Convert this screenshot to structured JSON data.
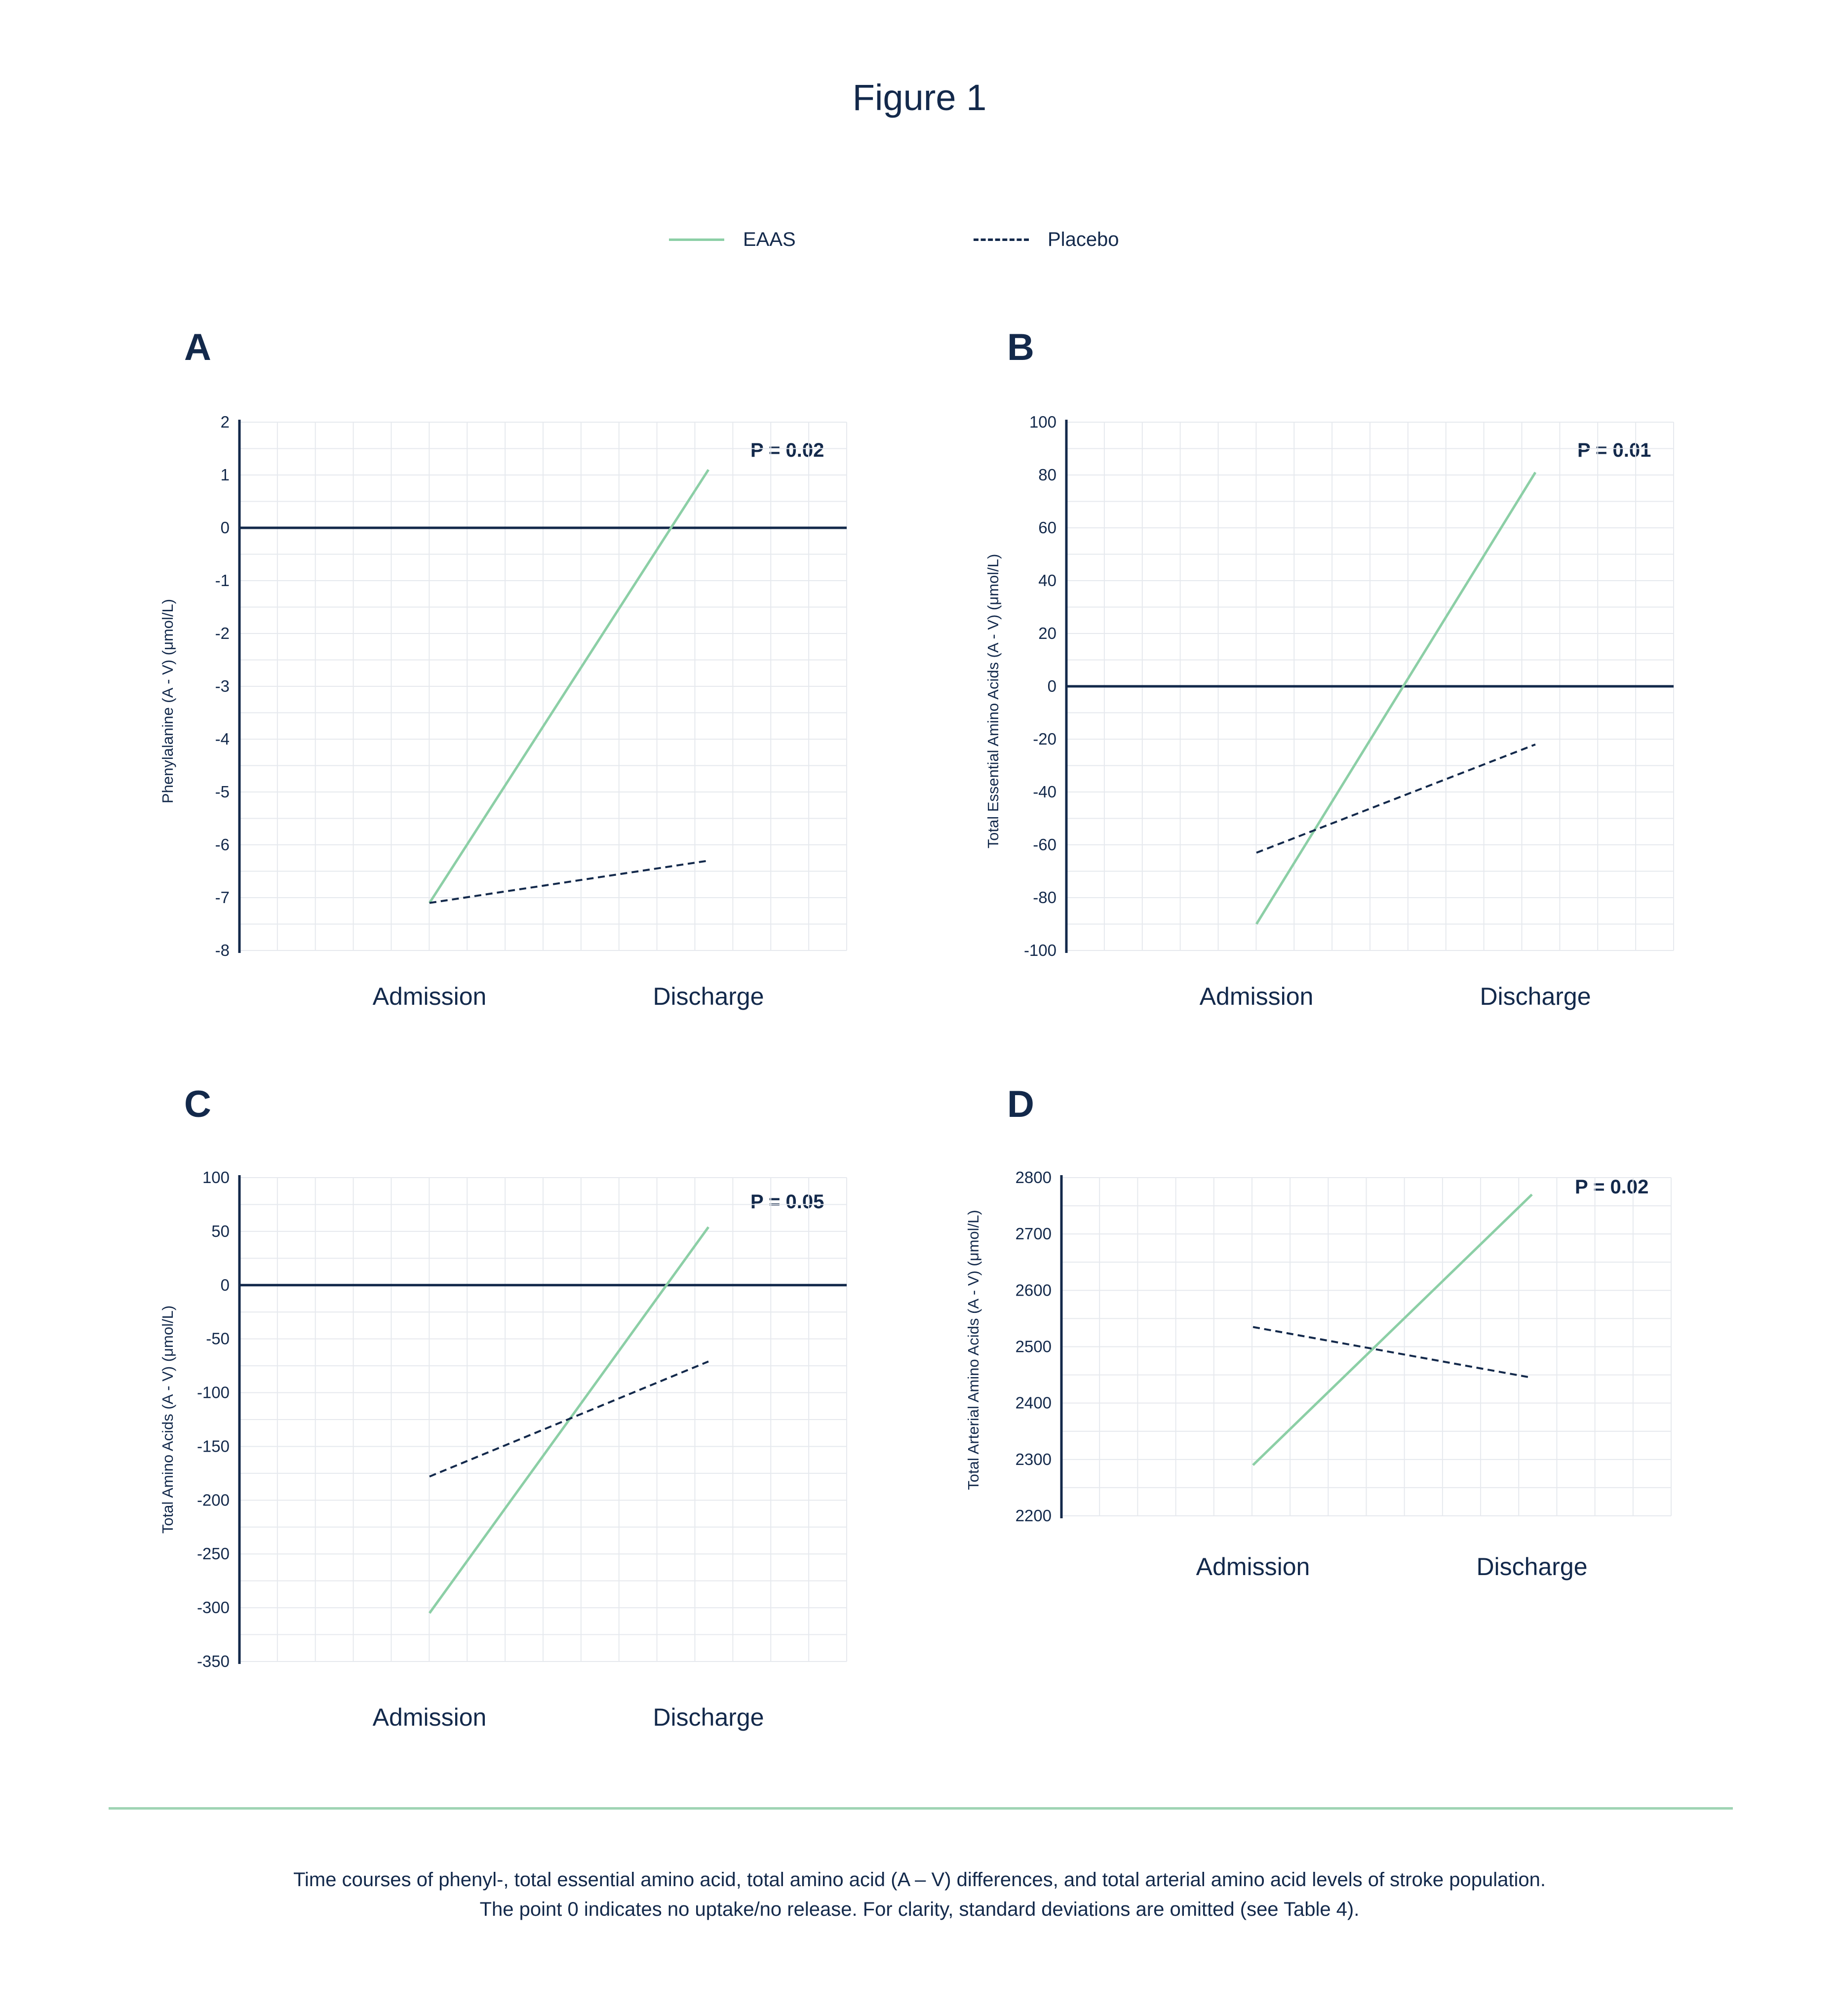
{
  "figure_title": "Figure 1",
  "legend": [
    {
      "name": "EAAS",
      "color": "#8ccfa6",
      "style": "solid"
    },
    {
      "name": "Placebo",
      "color": "#13294b",
      "style": "dashed"
    }
  ],
  "caption": {
    "line1": "Time courses of phenyl-, total essential amino acid, total amino acid (A – V) differences, and total arterial amino acid levels of stroke population.",
    "line2": "The point 0 indicates no uptake/no release. For clarity, standard deviations are omitted (see Table 4)."
  },
  "colors": {
    "eaas": "#8ccfa6",
    "placebo": "#13294b",
    "axis": "#13294b",
    "grid": "#e6e9ee",
    "divider": "#9fd4b4"
  },
  "chart_data": [
    {
      "panel": "A",
      "type": "line",
      "ylabel": "Phenylalanine (A - V) (μmol/L)",
      "pvalue": "P = 0.02",
      "x": [
        "Admission",
        "Discharge"
      ],
      "ylim": [
        -8,
        2
      ],
      "yticks": [
        "2",
        "1",
        "0",
        "-1",
        "-2",
        "-3",
        "-4",
        "-5",
        "-6",
        "-7",
        "-8"
      ],
      "zero_line": true,
      "grid": true,
      "series": [
        {
          "name": "EAAS",
          "values": [
            -7.1,
            1.1
          ]
        },
        {
          "name": "Placebo",
          "values": [
            -7.1,
            -6.3
          ]
        }
      ]
    },
    {
      "panel": "B",
      "type": "line",
      "ylabel": "Total Essential Amino Acids (A - V) (μmol/L)",
      "pvalue": "P = 0.01",
      "x": [
        "Admission",
        "Discharge"
      ],
      "ylim": [
        -100,
        100
      ],
      "yticks": [
        "100",
        "80",
        "60",
        "40",
        "20",
        "0",
        "-20",
        "-40",
        "-60",
        "-80",
        "-100"
      ],
      "zero_line": true,
      "grid": true,
      "series": [
        {
          "name": "EAAS",
          "values": [
            -90,
            81
          ]
        },
        {
          "name": "Placebo",
          "values": [
            -63,
            -22
          ]
        }
      ]
    },
    {
      "panel": "C",
      "type": "line",
      "ylabel": "Total Amino Acids (A - V) (μmol/L)",
      "pvalue": "P = 0.05",
      "x": [
        "Admission",
        "Discharge"
      ],
      "ylim": [
        -350,
        100
      ],
      "yticks": [
        "100",
        "50",
        "0",
        "-50",
        "-100",
        "-150",
        "-200",
        "-250",
        "-300",
        "-350"
      ],
      "zero_line": true,
      "grid": true,
      "series": [
        {
          "name": "EAAS",
          "values": [
            -305,
            54
          ]
        },
        {
          "name": "Placebo",
          "values": [
            -178,
            -71
          ]
        }
      ]
    },
    {
      "panel": "D",
      "type": "line",
      "ylabel": "Total Arterial Amino Acids (A - V) (μmol/L)",
      "pvalue": "P = 0.02",
      "x": [
        "Admission",
        "Discharge"
      ],
      "ylim": [
        2200,
        2800
      ],
      "yticks": [
        "2800",
        "2700",
        "2600",
        "2500",
        "2400",
        "2300",
        "2200"
      ],
      "zero_line": false,
      "grid": true,
      "series": [
        {
          "name": "EAAS",
          "values": [
            2290,
            2770
          ]
        },
        {
          "name": "Placebo",
          "values": [
            2535,
            2445
          ]
        }
      ]
    }
  ]
}
